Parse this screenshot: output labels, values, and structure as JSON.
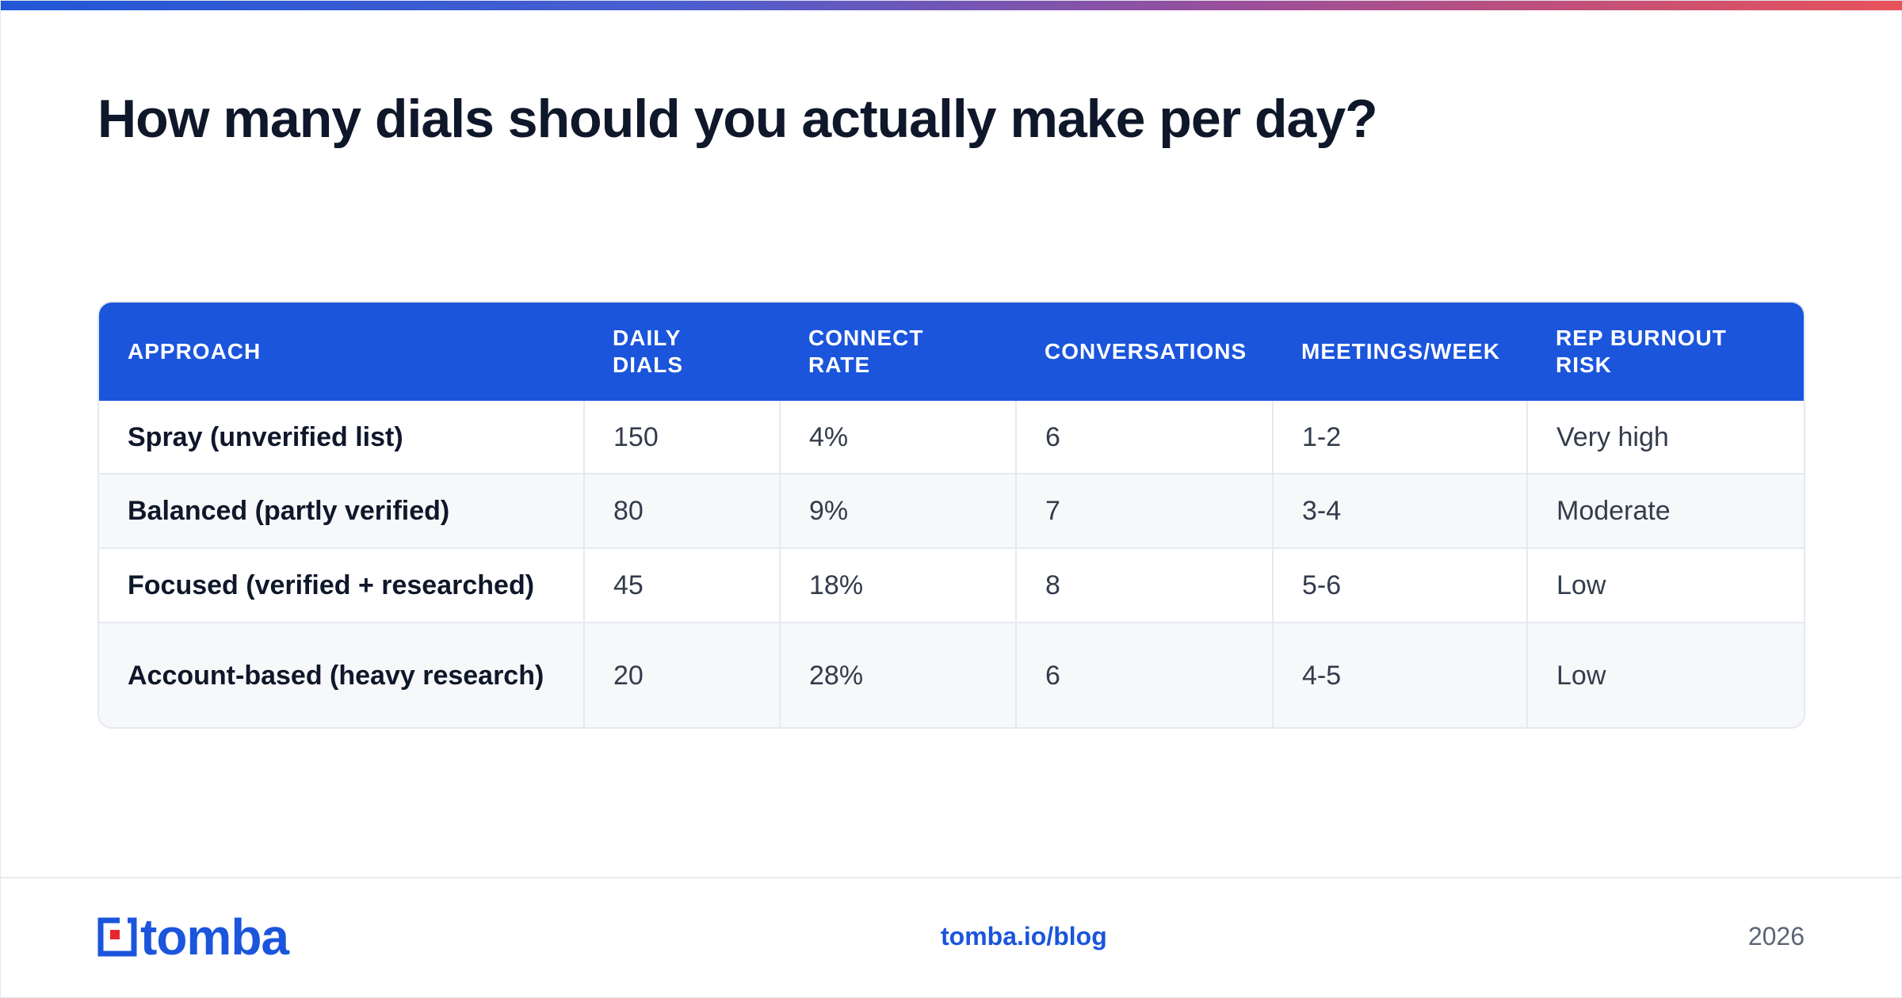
{
  "title": "How many dials should you actually make per day?",
  "accent_colors": {
    "primary": "#1b55dc",
    "gradient_start": "#2157d6",
    "gradient_end": "#e8525a"
  },
  "table": {
    "headers": [
      "APPROACH",
      "DAILY DIALS",
      "CONNECT RATE",
      "CONVERSATIONS",
      "MEETINGS/WEEK",
      "REP BURNOUT RISK"
    ],
    "rows": [
      [
        "Spray (unverified list)",
        "150",
        "4%",
        "6",
        "1-2",
        "Very high"
      ],
      [
        "Balanced (partly verified)",
        "80",
        "9%",
        "7",
        "3-4",
        "Moderate"
      ],
      [
        "Focused (verified + researched)",
        "45",
        "18%",
        "8",
        "5-6",
        "Low"
      ],
      [
        "Account-based (heavy research)",
        "20",
        "28%",
        "6",
        "4-5",
        "Low"
      ]
    ]
  },
  "footer": {
    "logo_text": "tomba",
    "link": "tomba.io/blog",
    "year": "2026"
  }
}
